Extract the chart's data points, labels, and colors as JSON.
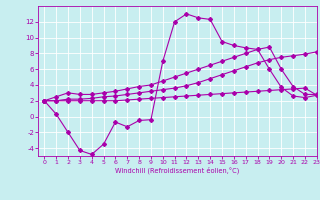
{
  "xlabel": "Windchill (Refroidissement éolien,°C)",
  "background_color": "#c8eef0",
  "line_color": "#aa00aa",
  "grid_color": "#ffffff",
  "xlim": [
    -0.5,
    23
  ],
  "ylim": [
    -5,
    14
  ],
  "xticks": [
    0,
    1,
    2,
    3,
    4,
    5,
    6,
    7,
    8,
    9,
    10,
    11,
    12,
    13,
    14,
    15,
    16,
    17,
    18,
    19,
    20,
    21,
    22,
    23
  ],
  "yticks": [
    -4,
    -2,
    0,
    2,
    4,
    6,
    8,
    10,
    12
  ],
  "line_upper_x": [
    0,
    1,
    2,
    3,
    4,
    5,
    6,
    7,
    8,
    9,
    10,
    11,
    12,
    13,
    14,
    15,
    16,
    17,
    18,
    19,
    20,
    21,
    22,
    23
  ],
  "line_upper_y": [
    2.0,
    2.5,
    3.0,
    2.8,
    2.8,
    3.0,
    3.2,
    3.5,
    3.8,
    4.0,
    4.5,
    5.0,
    5.5,
    6.0,
    6.5,
    7.0,
    7.5,
    8.0,
    8.5,
    8.8,
    6.0,
    3.8,
    2.8,
    2.8
  ],
  "line_mid_x": [
    0,
    1,
    2,
    3,
    4,
    5,
    6,
    7,
    8,
    9,
    10,
    11,
    12,
    13,
    14,
    15,
    16,
    17,
    18,
    19,
    20,
    21,
    22,
    23
  ],
  "line_mid_y": [
    2.0,
    2.0,
    2.2,
    2.2,
    2.3,
    2.5,
    2.6,
    2.8,
    3.0,
    3.2,
    3.4,
    3.6,
    3.9,
    4.3,
    4.8,
    5.3,
    5.8,
    6.3,
    6.8,
    7.2,
    7.5,
    7.7,
    7.9,
    8.2
  ],
  "line_lower_x": [
    0,
    1,
    2,
    3,
    4,
    5,
    6,
    7,
    8,
    9,
    10,
    11,
    12,
    13,
    14,
    15,
    16,
    17,
    18,
    19,
    20,
    21,
    22,
    23
  ],
  "line_lower_y": [
    2.0,
    2.0,
    2.0,
    2.0,
    2.0,
    2.0,
    2.0,
    2.1,
    2.2,
    2.3,
    2.4,
    2.5,
    2.6,
    2.7,
    2.8,
    2.9,
    3.0,
    3.1,
    3.2,
    3.3,
    3.4,
    3.5,
    3.6,
    2.7
  ],
  "line_main_x": [
    0,
    1,
    2,
    3,
    4,
    5,
    6,
    7,
    8,
    9,
    10,
    11,
    12,
    13,
    14,
    15,
    16,
    17,
    18,
    19,
    20,
    21,
    22,
    23
  ],
  "line_main_y": [
    2.0,
    0.3,
    -2.0,
    -4.3,
    -4.8,
    -3.5,
    -0.7,
    -1.3,
    -0.5,
    -0.4,
    7.0,
    12.0,
    13.0,
    12.5,
    12.3,
    9.5,
    9.0,
    8.7,
    8.5,
    6.0,
    3.7,
    2.6,
    2.4,
    2.7
  ]
}
